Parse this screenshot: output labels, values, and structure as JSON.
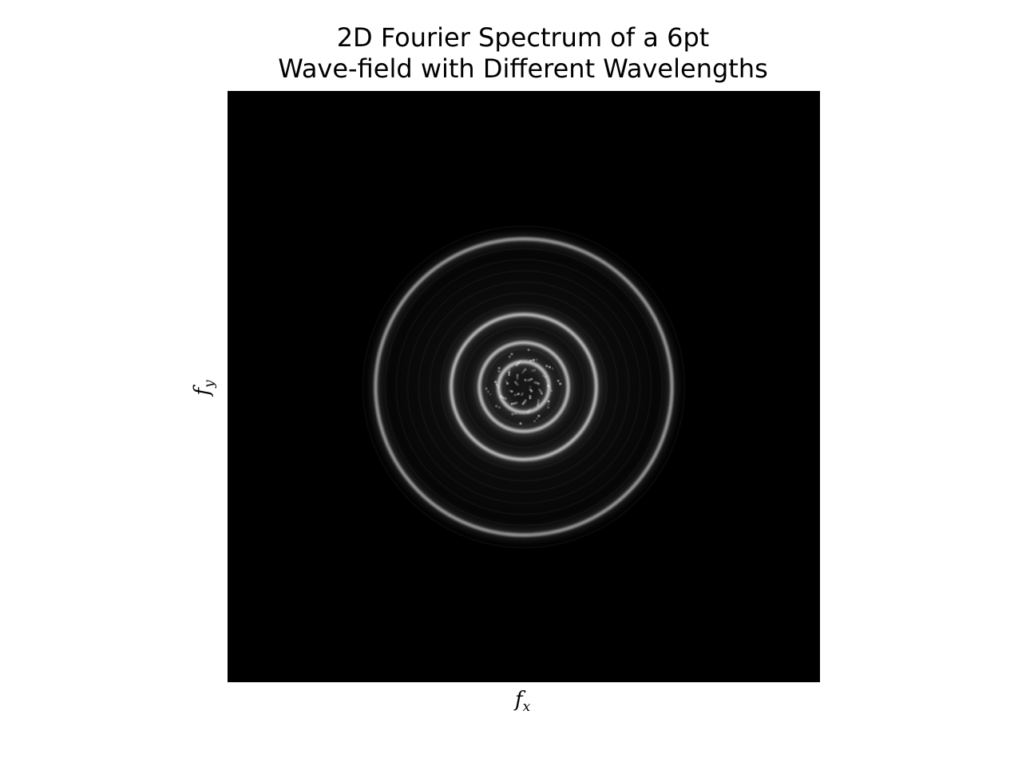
{
  "chart_data": {
    "type": "heatmap",
    "title_lines": [
      "2D Fourier Spectrum of a 6pt",
      "Wave-field with Different Wavelengths"
    ],
    "xlabel": {
      "base": "f",
      "subscript": "x"
    },
    "ylabel": {
      "base": "f",
      "subscript": "y"
    },
    "colormap": "grayscale",
    "background_color": "#000000",
    "ticks": "none",
    "grid": false,
    "rings": [
      {
        "label": "outer",
        "relative_radius": 1.0,
        "intensity": 0.85
      },
      {
        "label": "middle",
        "relative_radius": 0.49,
        "intensity": 0.95
      },
      {
        "label": "inner",
        "relative_radius": 0.3,
        "intensity": 0.95
      },
      {
        "label": "innermost",
        "relative_radius": 0.17,
        "intensity": 1.0
      }
    ]
  }
}
